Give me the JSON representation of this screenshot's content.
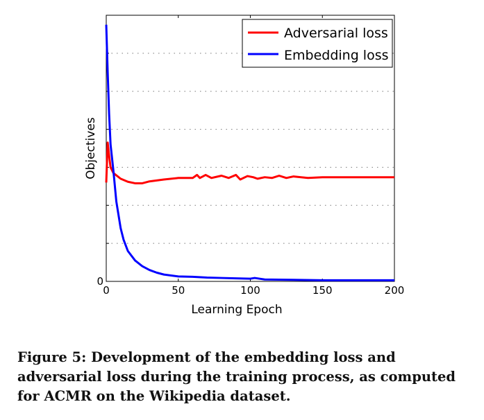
{
  "chart_data": {
    "type": "line",
    "title": "",
    "xlabel": "Learning Epoch",
    "ylabel": "Objectives",
    "xlim": [
      0,
      200
    ],
    "ylim": [
      0,
      7
    ],
    "xticks": [
      "0",
      "50",
      "100",
      "150",
      "200"
    ],
    "yticks": [
      "0"
    ],
    "grid": "horizontal dotted",
    "legend_position": "top-right",
    "series": [
      {
        "name": "Adversarial loss",
        "color": "#ff0000",
        "x": [
          0,
          1,
          2,
          3,
          5,
          10,
          15,
          20,
          25,
          30,
          40,
          50,
          55,
          60,
          63,
          65,
          69,
          73,
          80,
          85,
          90,
          93,
          98,
          102,
          105,
          110,
          115,
          120,
          125,
          130,
          140,
          150,
          175,
          200
        ],
        "y": [
          2.6,
          3.65,
          3.3,
          3.0,
          2.85,
          2.7,
          2.62,
          2.58,
          2.58,
          2.63,
          2.68,
          2.72,
          2.72,
          2.72,
          2.8,
          2.72,
          2.8,
          2.72,
          2.78,
          2.72,
          2.8,
          2.68,
          2.77,
          2.74,
          2.7,
          2.74,
          2.72,
          2.78,
          2.72,
          2.76,
          2.72,
          2.74,
          2.74,
          2.74
        ]
      },
      {
        "name": "Embedding loss",
        "color": "#0000ff",
        "x": [
          0,
          1,
          2,
          3,
          5,
          7,
          10,
          12,
          15,
          20,
          25,
          30,
          35,
          40,
          50,
          60,
          70,
          80,
          90,
          100,
          103,
          110,
          130,
          150,
          200
        ],
        "y": [
          6.75,
          5.5,
          4.4,
          3.6,
          2.9,
          2.1,
          1.4,
          1.1,
          0.8,
          0.55,
          0.4,
          0.3,
          0.23,
          0.18,
          0.13,
          0.12,
          0.1,
          0.09,
          0.08,
          0.07,
          0.09,
          0.05,
          0.04,
          0.03,
          0.03
        ]
      }
    ]
  },
  "caption": "Figure 5: Development of the embedding loss and adversarial loss during the training process, as computed for ACMR on the Wikipedia dataset."
}
